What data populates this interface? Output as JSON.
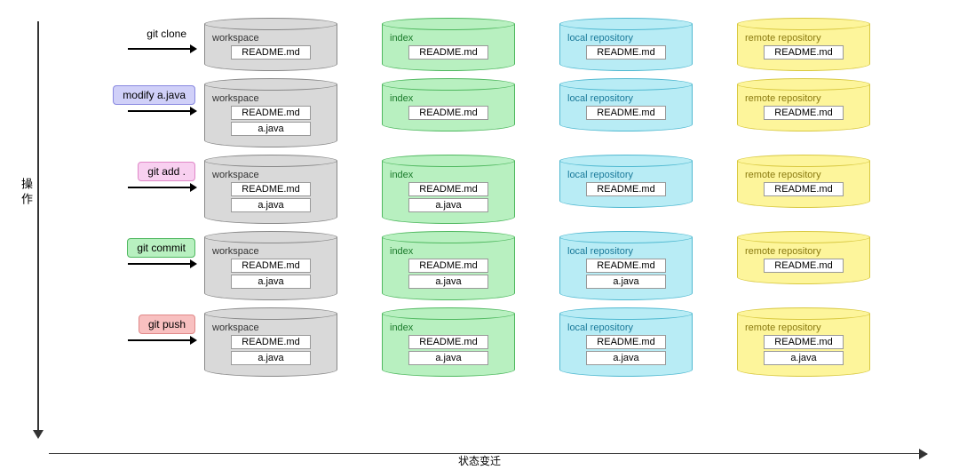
{
  "axes": {
    "vertical_label": "操作",
    "horizontal_label": "状态变迁"
  },
  "palette": {
    "workspace": {
      "fill": "#d9d9d9",
      "border": "#888888",
      "text": "#333333"
    },
    "index": {
      "fill": "#b8f0c0",
      "border": "#4fb85f",
      "text": "#1a7a2a"
    },
    "local": {
      "fill": "#b8ecf5",
      "border": "#4fb8d0",
      "text": "#1a7a9a"
    },
    "remote": {
      "fill": "#fdf59b",
      "border": "#d8c840",
      "text": "#8a7a10"
    }
  },
  "op_colors": {
    "modify": {
      "bg": "#d0d0f8",
      "border": "#8888e0"
    },
    "add": {
      "bg": "#f8d0f0",
      "border": "#e088c8"
    },
    "commit": {
      "bg": "#b8f0c0",
      "border": "#4fb85f"
    },
    "push": {
      "bg": "#f8c0c0",
      "border": "#e08888"
    }
  },
  "columns": {
    "workspace": "workspace",
    "index": "index",
    "local": "local repository",
    "remote": "remote repository"
  },
  "files": {
    "readme": "README.md",
    "ajava": "a.java"
  },
  "rows": [
    {
      "op_label": "git clone",
      "op_style": "plain",
      "cells": {
        "workspace": [
          "readme"
        ],
        "index": [
          "readme"
        ],
        "local": [
          "readme"
        ],
        "remote": [
          "readme"
        ]
      }
    },
    {
      "op_label": "modify a.java",
      "op_style": "modify",
      "cells": {
        "workspace": [
          "readme",
          "ajava"
        ],
        "index": [
          "readme"
        ],
        "local": [
          "readme"
        ],
        "remote": [
          "readme"
        ]
      }
    },
    {
      "op_label": "git add .",
      "op_style": "add",
      "cells": {
        "workspace": [
          "readme",
          "ajava"
        ],
        "index": [
          "readme",
          "ajava"
        ],
        "local": [
          "readme"
        ],
        "remote": [
          "readme"
        ]
      }
    },
    {
      "op_label": "git commit",
      "op_style": "commit",
      "cells": {
        "workspace": [
          "readme",
          "ajava"
        ],
        "index": [
          "readme",
          "ajava"
        ],
        "local": [
          "readme",
          "ajava"
        ],
        "remote": [
          "readme"
        ]
      }
    },
    {
      "op_label": "git push",
      "op_style": "push",
      "cells": {
        "workspace": [
          "readme",
          "ajava"
        ],
        "index": [
          "readme",
          "ajava"
        ],
        "local": [
          "readme",
          "ajava"
        ],
        "remote": [
          "readme",
          "ajava"
        ]
      }
    }
  ]
}
